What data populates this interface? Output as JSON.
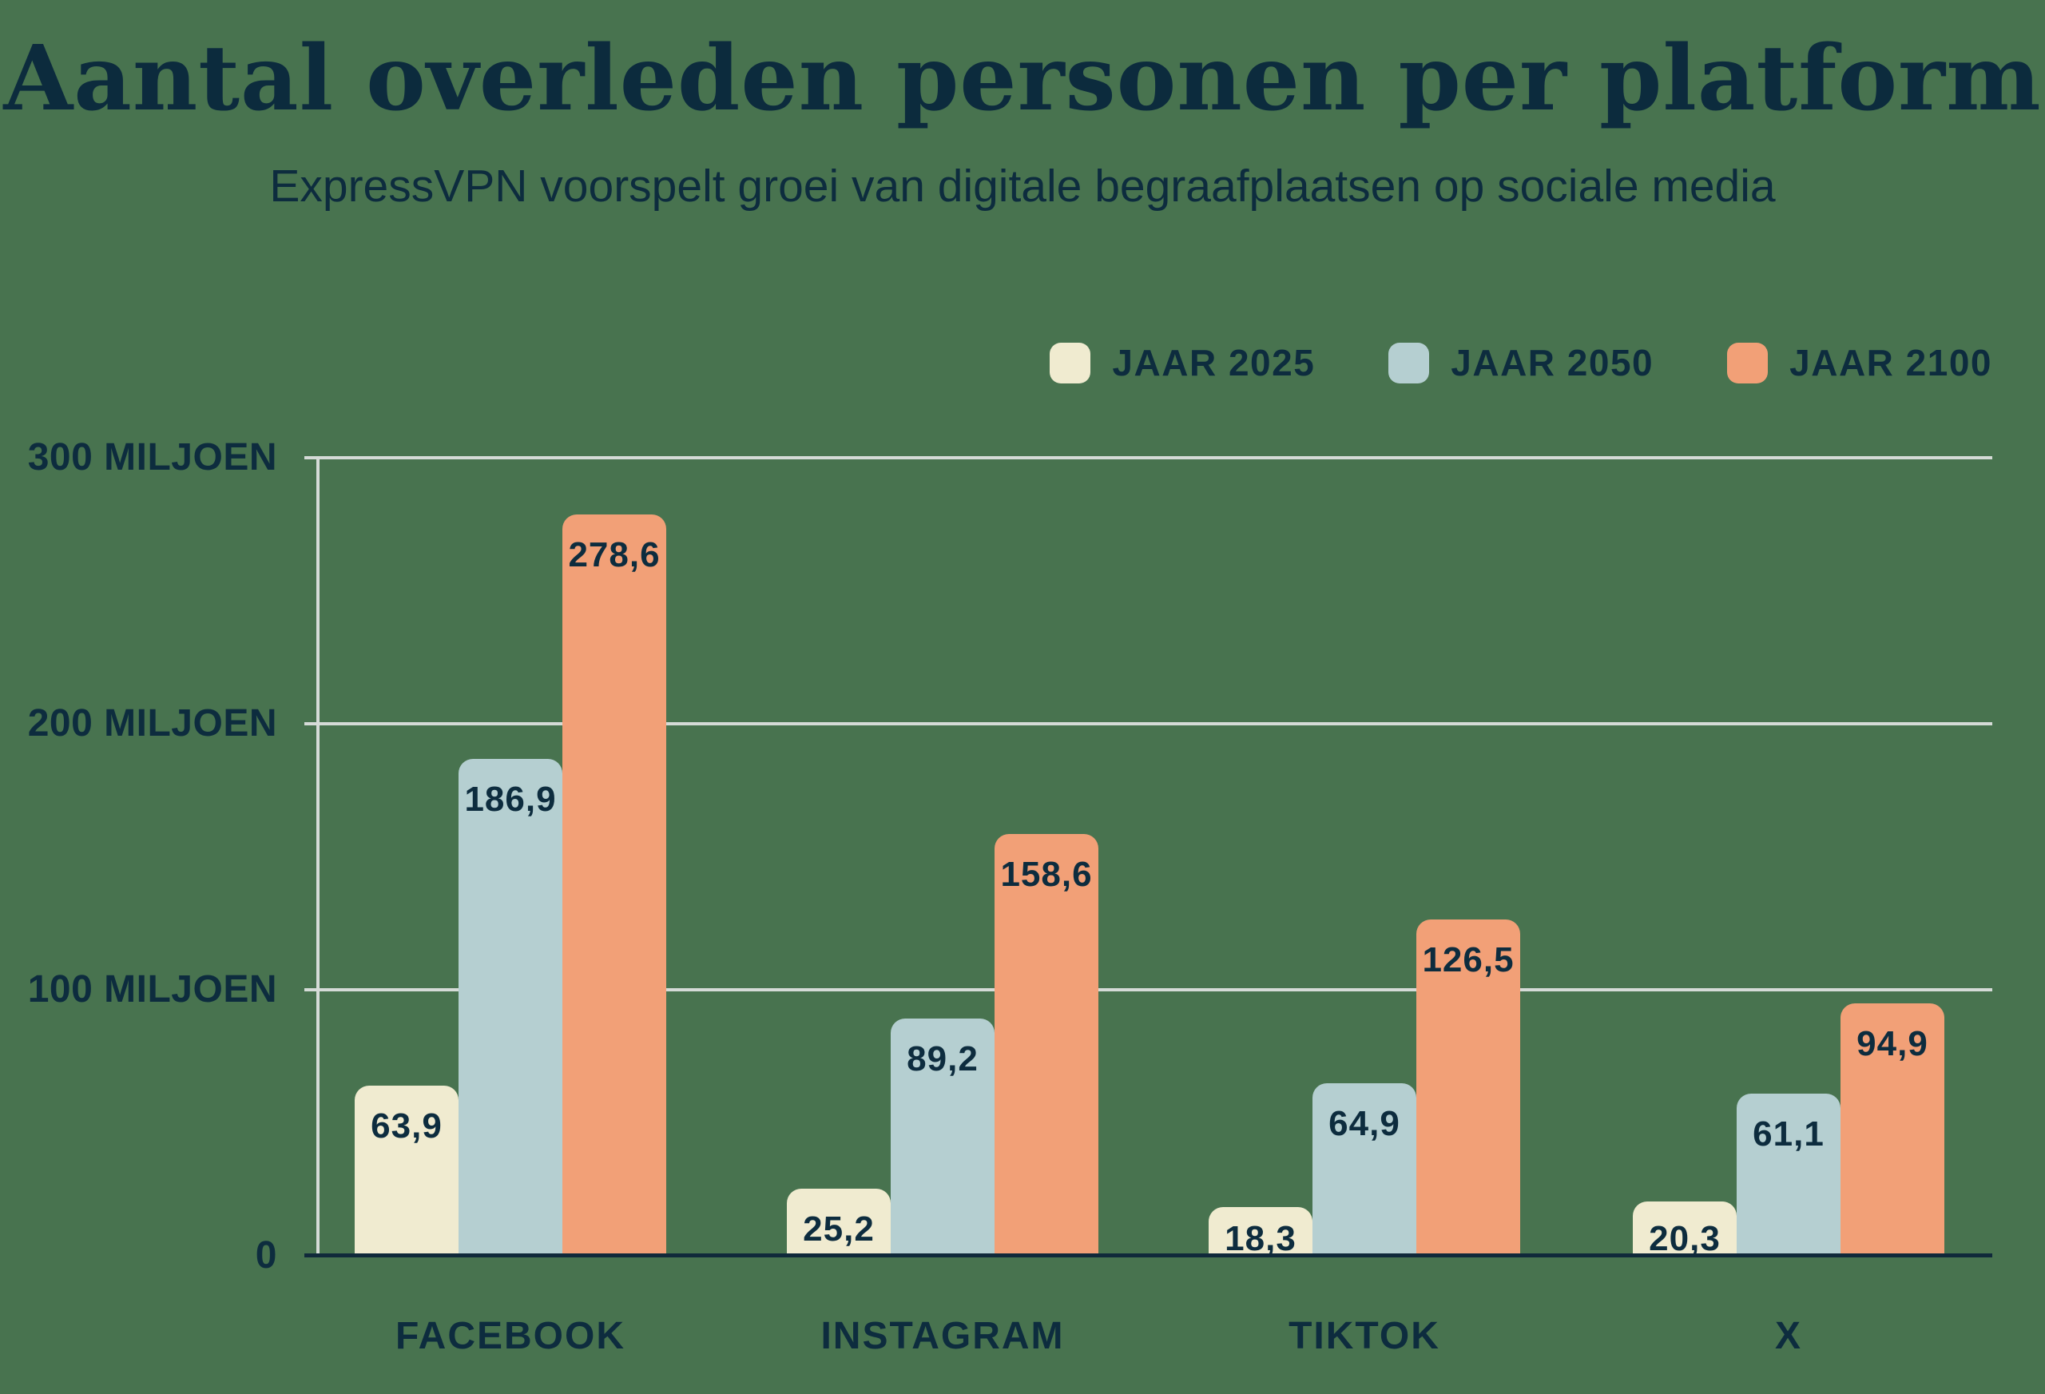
{
  "chart_data": {
    "type": "bar",
    "title": "Aantal overleden personen per platform",
    "subtitle": "ExpressVPN voorspelt groei van digitale begraafplaatsen op sociale media",
    "categories": [
      "FACEBOOK",
      "INSTAGRAM",
      "TIKTOK",
      "X"
    ],
    "series": [
      {
        "name": "JAAR 2025",
        "color": "#f0ebd0",
        "values": [
          63.9,
          25.2,
          18.3,
          20.3
        ]
      },
      {
        "name": "JAAR 2050",
        "color": "#b5cfd1",
        "values": [
          186.9,
          89.2,
          64.9,
          61.1
        ]
      },
      {
        "name": "JAAR 2100",
        "color": "#f2a077",
        "values": [
          278.6,
          158.6,
          126.5,
          94.9
        ]
      }
    ],
    "value_label_format": "decimal-comma",
    "yticks": [
      {
        "value": 300,
        "label": "300 MILJOEN"
      },
      {
        "value": 200,
        "label": "200 MILJOEN"
      },
      {
        "value": 100,
        "label": "100 MILJOEN"
      },
      {
        "value": 0,
        "label": "0"
      }
    ],
    "ylim": [
      0,
      300
    ],
    "grid": true,
    "legend_position": "top-right",
    "colors": {
      "background": "#48734f",
      "text": "#0d2c3e",
      "gridline": "#d5dbd7",
      "axis_line": "#10293a"
    }
  }
}
